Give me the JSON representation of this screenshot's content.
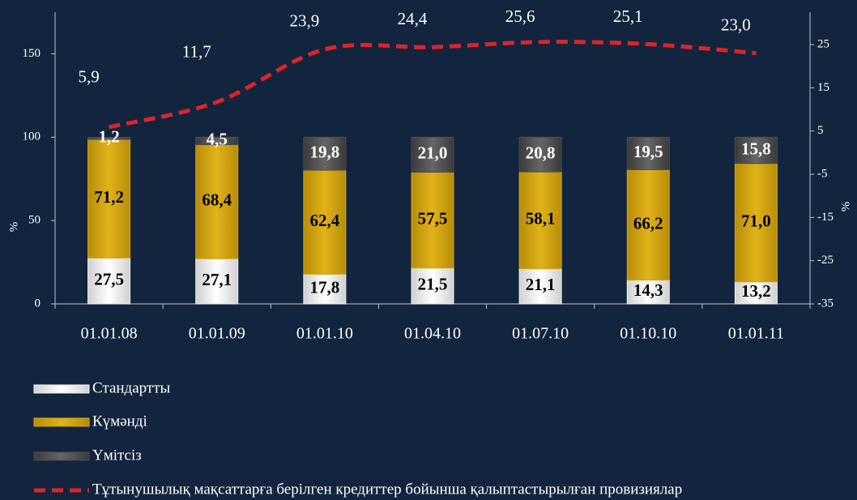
{
  "chart_data": {
    "type": "bar",
    "stacked": true,
    "categories": [
      "01.01.08",
      "01.01.09",
      "01.01.10",
      "01.04.10",
      "01.07.10",
      "01.10.10",
      "01.01.11"
    ],
    "series": [
      {
        "name": "Стандартты",
        "color": "#f2f2f2",
        "values": [
          27.5,
          27.1,
          17.8,
          21.5,
          21.1,
          14.3,
          13.2
        ],
        "value_labels": [
          "27,5",
          "27,1",
          "17,8",
          "21,5",
          "21,1",
          "14,3",
          "13,2"
        ]
      },
      {
        "name": "Күмәнді",
        "color": "#d4a514",
        "values": [
          71.2,
          68.4,
          62.4,
          57.5,
          58.1,
          66.2,
          71.0
        ],
        "value_labels": [
          "71,2",
          "68,4",
          "62,4",
          "57,5",
          "58,1",
          "66,2",
          "71,0"
        ]
      },
      {
        "name": "Үмітсіз",
        "color": "#4d4d4d",
        "values": [
          1.2,
          4.5,
          19.8,
          21.0,
          20.8,
          19.5,
          15.8
        ],
        "value_labels": [
          "1,2",
          "4,5",
          "19,8",
          "21,0",
          "20,8",
          "19,5",
          "15,8"
        ]
      },
      {
        "name": "Тұтынушылық мақсаттарға берілген кредиттер бойынша қалыптастырылған провизиялар",
        "color": "#d9252a",
        "type": "line",
        "axis": "y2",
        "values": [
          5.9,
          11.7,
          23.9,
          24.4,
          25.6,
          25.1,
          23.0
        ],
        "value_labels": [
          "5,9",
          "11,7",
          "23,9",
          "24,4",
          "25,6",
          "25,1",
          "23,0"
        ]
      }
    ],
    "ylabel": "%",
    "y2label": "%",
    "ylim": [
      0,
      175
    ],
    "yticks": [
      0,
      50,
      100,
      150
    ],
    "y2lim": [
      -35,
      32.5
    ],
    "y2ticks": [
      -35,
      -25,
      -15,
      -5,
      5,
      15,
      25
    ]
  }
}
